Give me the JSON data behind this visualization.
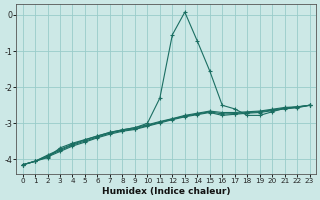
{
  "xlabel": "Humidex (Indice chaleur)",
  "background_color": "#cce8e6",
  "grid_color": "#99ccca",
  "line_color": "#1a6e62",
  "xlim": [
    -0.5,
    23.5
  ],
  "ylim": [
    -4.4,
    0.3
  ],
  "yticks": [
    0,
    -1,
    -2,
    -3,
    -4
  ],
  "xticks": [
    0,
    1,
    2,
    3,
    4,
    5,
    6,
    7,
    8,
    9,
    10,
    11,
    12,
    13,
    14,
    15,
    16,
    17,
    18,
    19,
    20,
    21,
    22,
    23
  ],
  "series": [
    {
      "x": [
        0,
        1,
        2,
        3,
        4,
        5,
        6,
        7,
        8,
        9,
        10,
        11,
        12,
        13,
        14,
        15,
        16,
        17,
        18,
        19,
        20,
        21,
        22,
        23
      ],
      "y": [
        -4.15,
        -4.05,
        -3.95,
        -3.68,
        -3.55,
        -3.45,
        -3.35,
        -3.25,
        -3.18,
        -3.12,
        -3.0,
        -2.3,
        -0.55,
        0.08,
        -0.72,
        -1.55,
        -2.5,
        -2.6,
        -2.78,
        -2.78,
        -2.68,
        -2.58,
        -2.55,
        -2.5
      ]
    },
    {
      "x": [
        0,
        1,
        2,
        3,
        4,
        5,
        6,
        7,
        8,
        9,
        10,
        11,
        12,
        13,
        14,
        15,
        16,
        17,
        18,
        19,
        20,
        21,
        22,
        23
      ],
      "y": [
        -4.15,
        -4.05,
        -3.93,
        -3.78,
        -3.63,
        -3.52,
        -3.4,
        -3.3,
        -3.22,
        -3.17,
        -3.08,
        -2.99,
        -2.9,
        -2.82,
        -2.76,
        -2.7,
        -2.78,
        -2.75,
        -2.72,
        -2.7,
        -2.65,
        -2.6,
        -2.57,
        -2.5
      ]
    },
    {
      "x": [
        0,
        1,
        2,
        3,
        4,
        5,
        6,
        7,
        8,
        9,
        10,
        11,
        12,
        13,
        14,
        15,
        16,
        17,
        18,
        19,
        20,
        21,
        22,
        23
      ],
      "y": [
        -4.15,
        -4.05,
        -3.9,
        -3.75,
        -3.6,
        -3.49,
        -3.38,
        -3.27,
        -3.2,
        -3.15,
        -3.06,
        -2.97,
        -2.88,
        -2.8,
        -2.74,
        -2.68,
        -2.74,
        -2.73,
        -2.7,
        -2.68,
        -2.63,
        -2.58,
        -2.55,
        -2.5
      ]
    },
    {
      "x": [
        0,
        1,
        2,
        3,
        4,
        5,
        6,
        7,
        8,
        9,
        10,
        11,
        12,
        13,
        14,
        15,
        16,
        17,
        18,
        19,
        20,
        21,
        22,
        23
      ],
      "y": [
        -4.15,
        -4.05,
        -3.88,
        -3.72,
        -3.58,
        -3.46,
        -3.35,
        -3.25,
        -3.18,
        -3.12,
        -3.04,
        -2.95,
        -2.87,
        -2.78,
        -2.72,
        -2.66,
        -2.7,
        -2.7,
        -2.68,
        -2.66,
        -2.61,
        -2.56,
        -2.54,
        -2.5
      ]
    }
  ]
}
